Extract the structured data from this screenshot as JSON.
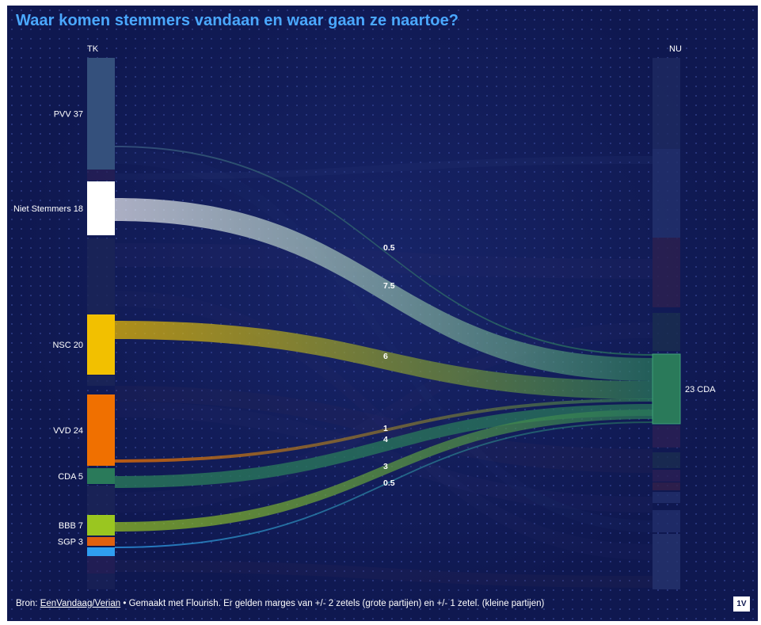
{
  "title": "Waar komen stemmers vandaan en waar gaan ze naartoe?",
  "colors": {
    "background": "#0f1850",
    "title": "#4aa8ff",
    "pvv": "#34507c",
    "niet_stemmers": "#ffffff",
    "nsc": "#f2c000",
    "vvd": "#f07000",
    "cda": "#2a7a5a",
    "bbb": "#9ac620",
    "sgp": "#e06010",
    "small_party": "#2f9ef0"
  },
  "diagram": {
    "type": "sankey",
    "left_header": "TK",
    "right_header": "NU",
    "left_nodes": [
      {
        "id": "pvv",
        "label": "PVV 37",
        "color": "#34507c"
      },
      {
        "id": "niet",
        "label": "Niet Stemmers 18",
        "color": "#ffffff"
      },
      {
        "id": "nsc",
        "label": "NSC 20",
        "color": "#f2c000"
      },
      {
        "id": "vvd",
        "label": "VVD 24",
        "color": "#f07000"
      },
      {
        "id": "cda",
        "label": "CDA 5",
        "color": "#2a7a5a"
      },
      {
        "id": "bbb",
        "label": "BBB 7",
        "color": "#9ac620"
      },
      {
        "id": "sgp",
        "label": "SGP 3",
        "color": "#e06010"
      },
      {
        "id": "small",
        "label": "",
        "color": "#2f9ef0"
      }
    ],
    "right_nodes": [
      {
        "id": "cda_nu",
        "label": "23 CDA",
        "color": "#2a7a5a"
      }
    ],
    "flows": [
      {
        "from": "pvv",
        "to": "cda_nu",
        "value": 0.5,
        "label": "0.5"
      },
      {
        "from": "niet",
        "to": "cda_nu",
        "value": 7.5,
        "label": "7.5"
      },
      {
        "from": "nsc",
        "to": "cda_nu",
        "value": 6,
        "label": "6"
      },
      {
        "from": "vvd",
        "to": "cda_nu",
        "value": 1,
        "label": "1"
      },
      {
        "from": "cda",
        "to": "cda_nu",
        "value": 4,
        "label": "4"
      },
      {
        "from": "bbb",
        "to": "cda_nu",
        "value": 3,
        "label": "3"
      },
      {
        "from": "small",
        "to": "cda_nu",
        "value": 0.5,
        "label": "0.5"
      }
    ]
  },
  "footer": {
    "prefix": "Bron: ",
    "source_link": "EenVandaag/Verian",
    "text": " • Gemaakt met Flourish. Er gelden marges van +/- 2 zetels (grote partijen) en +/- 1 zetel. (kleine partijen)"
  },
  "logo": "1V"
}
